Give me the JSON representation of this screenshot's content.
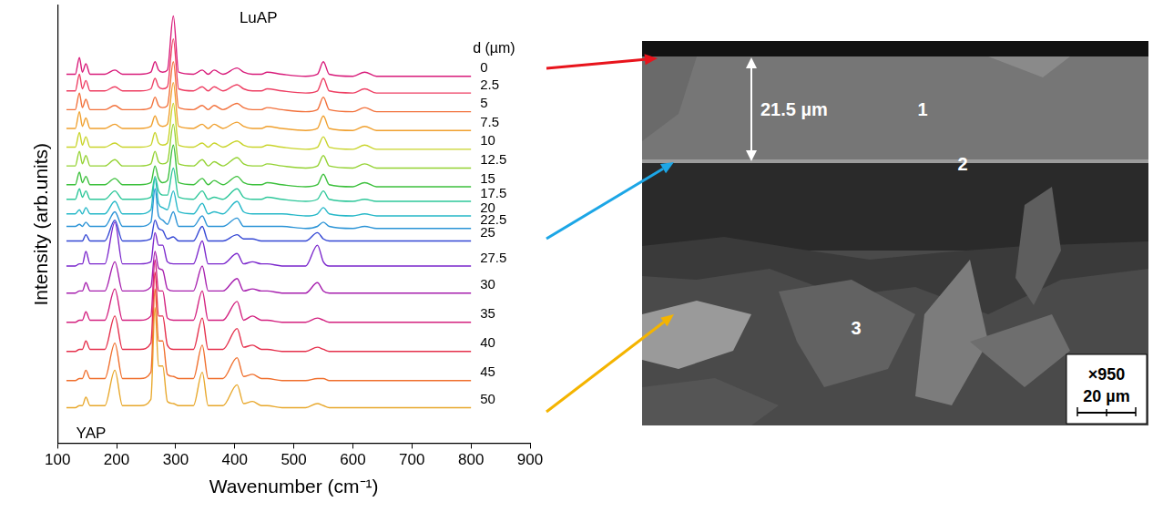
{
  "chart_data": {
    "type": "line",
    "x_label": "Wavenumber (cm⁻¹)",
    "y_label": "Intensity (arb.units)",
    "annotations": [
      "LuAP",
      "YAP"
    ],
    "series_title": "d (µm)",
    "x": [
      115,
      130,
      137,
      142,
      148,
      155,
      180,
      197,
      210,
      240,
      258,
      265,
      271,
      278,
      286,
      296,
      305,
      330,
      345,
      355,
      365,
      380,
      404,
      415,
      430,
      445,
      455,
      480,
      520,
      540,
      550,
      560,
      600,
      620,
      640,
      700,
      750,
      800
    ],
    "series": [
      {
        "name": "0",
        "color": "#d81b7a",
        "values": [
          167,
          167,
          175,
          168,
          172,
          167,
          167,
          169,
          167,
          167,
          168,
          173,
          169,
          168,
          169,
          195,
          168,
          167,
          169,
          167,
          169,
          167,
          170,
          168,
          167,
          167,
          168,
          167,
          166,
          167,
          173,
          167,
          166,
          168,
          166,
          166,
          166,
          166
        ]
      },
      {
        "name": "2.5",
        "color": "#ee3f63",
        "values": [
          159,
          159,
          167,
          160,
          164,
          159,
          159,
          161,
          159,
          159,
          160,
          165,
          161,
          160,
          161,
          184,
          160,
          159,
          161,
          159,
          161,
          159,
          162,
          160,
          159,
          159,
          160,
          159,
          158,
          159,
          165,
          159,
          158,
          160,
          158,
          158,
          158,
          158
        ]
      },
      {
        "name": "5",
        "color": "#f2703a",
        "values": [
          150,
          150,
          158,
          151,
          155,
          150,
          150,
          152,
          150,
          150,
          151,
          156,
          152,
          151,
          152,
          173,
          151,
          150,
          152,
          150,
          152,
          150,
          153,
          151,
          150,
          150,
          151,
          150,
          149,
          150,
          156,
          150,
          149,
          151,
          149,
          149,
          149,
          149
        ]
      },
      {
        "name": "7.5",
        "color": "#f0a02e",
        "values": [
          141,
          141,
          149,
          142,
          146,
          141,
          141,
          143,
          141,
          141,
          142,
          147,
          143,
          142,
          143,
          163,
          142,
          141,
          143,
          141,
          143,
          141,
          144,
          142,
          141,
          141,
          142,
          141,
          140,
          141,
          147,
          141,
          140,
          142,
          140,
          140,
          140,
          140
        ]
      },
      {
        "name": "10",
        "color": "#c9d42a",
        "values": [
          132,
          132,
          139,
          133,
          137,
          132,
          132,
          134,
          132,
          132,
          133,
          139,
          134,
          133,
          134,
          153,
          133,
          132,
          134,
          132,
          134,
          132,
          135,
          133,
          132,
          132,
          133,
          132,
          131,
          132,
          137,
          132,
          131,
          133,
          131,
          131,
          131,
          131
        ]
      },
      {
        "name": "12.5",
        "color": "#94d232",
        "values": [
          123,
          123,
          130,
          124,
          128,
          123,
          123,
          126,
          123,
          123,
          124,
          130,
          125,
          124,
          125,
          143,
          124,
          123,
          126,
          123,
          125,
          123,
          127,
          124,
          123,
          123,
          124,
          123,
          122,
          123,
          128,
          123,
          122,
          124,
          122,
          122,
          122,
          122
        ]
      },
      {
        "name": "15",
        "color": "#3cc03c",
        "values": [
          114,
          114,
          120,
          115,
          118,
          114,
          114,
          117,
          114,
          114,
          115,
          123,
          117,
          115,
          116,
          133,
          115,
          114,
          117,
          114,
          116,
          114,
          118,
          115,
          114,
          114,
          115,
          114,
          113,
          114,
          119,
          114,
          113,
          115,
          113,
          113,
          113,
          113
        ]
      },
      {
        "name": "17.5",
        "color": "#2ec79a",
        "values": [
          107,
          107,
          112,
          108,
          111,
          107,
          107,
          111,
          107,
          107,
          108,
          118,
          111,
          109,
          109,
          122,
          108,
          107,
          111,
          107,
          108,
          107,
          112,
          108,
          107,
          107,
          108,
          107,
          106,
          107,
          111,
          107,
          106,
          107,
          106,
          106,
          106,
          106
        ]
      },
      {
        "name": "20",
        "color": "#26b8c8",
        "values": [
          100,
          100,
          102,
          100,
          103,
          100,
          100,
          106,
          100,
          100,
          102,
          117,
          105,
          103,
          102,
          111,
          101,
          100,
          105,
          100,
          101,
          100,
          106,
          101,
          100,
          100,
          100,
          100,
          99,
          100,
          103,
          100,
          99,
          100,
          99,
          99,
          99,
          99
        ]
      },
      {
        "name": "22.5",
        "color": "#2a93d6",
        "values": [
          94,
          94,
          95,
          94,
          96,
          94,
          94,
          101,
          94,
          94,
          96,
          112,
          99,
          97,
          95,
          101,
          94,
          94,
          99,
          94,
          94,
          94,
          98,
          94,
          94,
          94,
          94,
          94,
          93,
          94,
          96,
          94,
          93,
          94,
          93,
          93,
          93,
          93
        ]
      },
      {
        "name": "25",
        "color": "#3346d4",
        "values": [
          87,
          87,
          87,
          87,
          90,
          87,
          87,
          97,
          87,
          87,
          88,
          97,
          93,
          92,
          88,
          89,
          87,
          87,
          94,
          87,
          87,
          87,
          90,
          88,
          88,
          87,
          87,
          87,
          87,
          91,
          88,
          87,
          87,
          87,
          87,
          87,
          87,
          87
        ]
      },
      {
        "name": "27.5",
        "color": "#7a26cc",
        "values": [
          75,
          75,
          76,
          76,
          82,
          76,
          76,
          96,
          76,
          76,
          77,
          91,
          85,
          85,
          77,
          76,
          76,
          76,
          87,
          76,
          76,
          76,
          81,
          76,
          77,
          76,
          76,
          75,
          75,
          85,
          77,
          75,
          75,
          75,
          75,
          75,
          75,
          75
        ]
      },
      {
        "name": "30",
        "color": "#a61fae",
        "values": [
          62,
          62,
          63,
          63,
          67,
          63,
          63,
          77,
          63,
          63,
          65,
          82,
          74,
          73,
          64,
          63,
          63,
          63,
          75,
          63,
          63,
          63,
          69,
          63,
          64,
          63,
          63,
          62,
          62,
          67,
          63,
          62,
          62,
          62,
          62,
          62,
          62,
          62
        ]
      },
      {
        "name": "35",
        "color": "#d3207f",
        "values": [
          48,
          48,
          49,
          49,
          53,
          49,
          49,
          64,
          49,
          49,
          51,
          78,
          63,
          63,
          50,
          49,
          49,
          49,
          63,
          49,
          49,
          49,
          58,
          49,
          51,
          49,
          49,
          48,
          48,
          50,
          49,
          48,
          48,
          48,
          48,
          48,
          48,
          48
        ]
      },
      {
        "name": "40",
        "color": "#e5304c",
        "values": [
          34,
          34,
          35,
          35,
          39,
          35,
          35,
          51,
          35,
          35,
          38,
          72,
          51,
          51,
          37,
          35,
          35,
          35,
          50,
          35,
          35,
          35,
          45,
          36,
          37,
          35,
          35,
          34,
          34,
          36,
          35,
          34,
          34,
          34,
          34,
          34,
          34,
          34
        ]
      },
      {
        "name": "45",
        "color": "#f0702e",
        "values": [
          20,
          20,
          21,
          21,
          25,
          21,
          21,
          38,
          21,
          21,
          24,
          64,
          39,
          39,
          23,
          22,
          21,
          21,
          37,
          21,
          21,
          21,
          31,
          22,
          23,
          21,
          21,
          20,
          20,
          21,
          21,
          20,
          20,
          20,
          20,
          20,
          20,
          20
        ]
      },
      {
        "name": "50",
        "color": "#e8a82c",
        "values": [
          7,
          7,
          8,
          8,
          12,
          8,
          8,
          25,
          8,
          8,
          11,
          55,
          27,
          27,
          10,
          9,
          8,
          8,
          24,
          8,
          8,
          8,
          18,
          9,
          10,
          8,
          8,
          7,
          7,
          9,
          8,
          7,
          7,
          7,
          7,
          7,
          7,
          7
        ]
      }
    ],
    "xlim": [
      100,
      900
    ],
    "xticks": [
      100,
      200,
      300,
      400,
      500,
      600,
      700,
      800,
      900
    ],
    "ylim": [
      -10,
      200
    ],
    "tick_labels": "x",
    "grid": false
  },
  "image": {
    "thickness_label": "21.5 µm",
    "layer_labels": [
      "1",
      "2",
      "3"
    ],
    "magnification": "×950",
    "scale_bar": "20 µm"
  }
}
